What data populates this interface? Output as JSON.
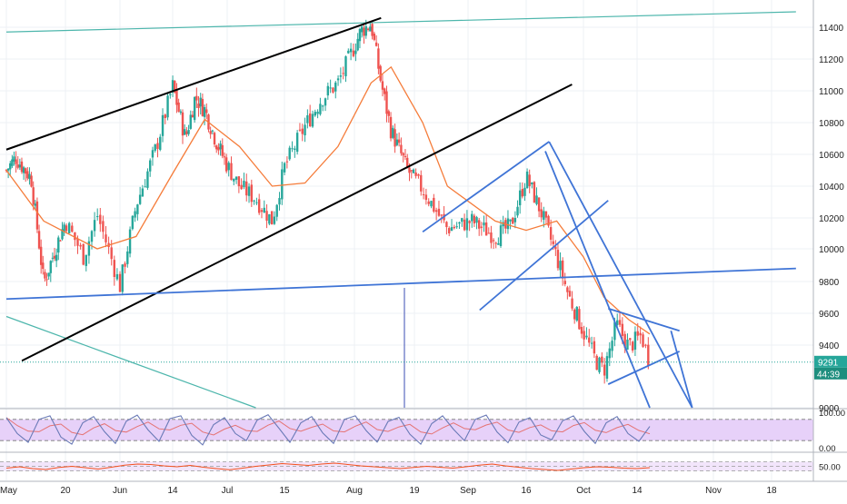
{
  "colors": {
    "bull": "#26a69a",
    "bear": "#ef5350",
    "ma": "#f57c3a",
    "grid": "#eef0f4",
    "axis_text": "#222222",
    "black_line": "#000000",
    "blue_line": "#3f74d6",
    "teal_line": "#4db6ac",
    "purple_line": "#5c6bc0",
    "stoch_band": "#e7d1f9",
    "stoch_k": "#6a7ab7",
    "stoch_d": "#e57373",
    "osc_band": "#f2e5fb",
    "osc_line": "#f4511e",
    "price_tag": "#26a69a",
    "timer_tag": "#1e8e7e"
  },
  "price_axis": {
    "labels": [
      "11400",
      "11200",
      "11000",
      "10800",
      "10600",
      "10400",
      "10200",
      "10000",
      "9800",
      "9600",
      "9400",
      "9000"
    ],
    "current_price": "9291",
    "countdown": "44:39"
  },
  "stoch_axis": {
    "labels": [
      "100.00",
      "0.00"
    ]
  },
  "osc_axis": {
    "labels": [
      "50.00"
    ]
  },
  "time_axis": {
    "labels": [
      "May",
      "20",
      "Jun",
      "14",
      "Jul",
      "15",
      "Aug",
      "19",
      "Sep",
      "16",
      "Oct",
      "14",
      "Nov",
      "18"
    ]
  },
  "chart_data": {
    "type": "candlestick",
    "instrument_unit": "price",
    "x_range": [
      "May 2019",
      "Nov 2019"
    ],
    "ylim": [
      9000,
      11500
    ],
    "y_ticks": [
      9000,
      9400,
      9600,
      9800,
      10000,
      10200,
      10400,
      10600,
      10800,
      11000,
      11200,
      11400
    ],
    "last_price": 9291,
    "grid": true,
    "close_path": [
      {
        "date": "May 1",
        "close": 10500
      },
      {
        "date": "May 4",
        "close": 10580
      },
      {
        "date": "May 9",
        "close": 10450
      },
      {
        "date": "May 13",
        "close": 9790
      },
      {
        "date": "May 20",
        "close": 10180
      },
      {
        "date": "May 24",
        "close": 9950
      },
      {
        "date": "May 27",
        "close": 10220
      },
      {
        "date": "Jun 1",
        "close": 9770
      },
      {
        "date": "Jun 5",
        "close": 10280
      },
      {
        "date": "Jun 10",
        "close": 10650
      },
      {
        "date": "Jun 14",
        "close": 11030
      },
      {
        "date": "Jun 18",
        "close": 10700
      },
      {
        "date": "Jun 21",
        "close": 10960
      },
      {
        "date": "Jun 24",
        "close": 10880
      },
      {
        "date": "Jun 28",
        "close": 10660
      },
      {
        "date": "Jul 4",
        "close": 10400
      },
      {
        "date": "Jul 8",
        "close": 10320
      },
      {
        "date": "Jul 12",
        "close": 10180
      },
      {
        "date": "Jul 15",
        "close": 10520
      },
      {
        "date": "Jul 20",
        "close": 10780
      },
      {
        "date": "Jul 24",
        "close": 10950
      },
      {
        "date": "Jul 28",
        "close": 11050
      },
      {
        "date": "Aug 1",
        "close": 11280
      },
      {
        "date": "Aug 3",
        "close": 11380
      },
      {
        "date": "Aug 6",
        "close": 11420
      },
      {
        "date": "Aug 9",
        "close": 11050
      },
      {
        "date": "Aug 12",
        "close": 10750
      },
      {
        "date": "Aug 17",
        "close": 10500
      },
      {
        "date": "Aug 21",
        "close": 10380
      },
      {
        "date": "Aug 27",
        "close": 10130
      },
      {
        "date": "Sep 2",
        "close": 10180
      },
      {
        "date": "Sep 8",
        "close": 10080
      },
      {
        "date": "Sep 12",
        "close": 10150
      },
      {
        "date": "Sep 16",
        "close": 10460
      },
      {
        "date": "Sep 20",
        "close": 10230
      },
      {
        "date": "Sep 24",
        "close": 9950
      },
      {
        "date": "Sep 27",
        "close": 9720
      },
      {
        "date": "Oct 1",
        "close": 9480
      },
      {
        "date": "Oct 4",
        "close": 9300
      },
      {
        "date": "Oct 6",
        "close": 9240
      },
      {
        "date": "Oct 9",
        "close": 9530
      },
      {
        "date": "Oct 12",
        "close": 9390
      },
      {
        "date": "Oct 15",
        "close": 9460
      },
      {
        "date": "Oct 17",
        "close": 9291
      }
    ],
    "moving_average": [
      {
        "date": "May 1",
        "value": 10500
      },
      {
        "date": "May 13",
        "value": 10180
      },
      {
        "date": "May 27",
        "value": 10000
      },
      {
        "date": "Jun 5",
        "value": 10080
      },
      {
        "date": "Jun 14",
        "value": 10480
      },
      {
        "date": "Jun 24",
        "value": 10820
      },
      {
        "date": "Jul 4",
        "value": 10650
      },
      {
        "date": "Jul 12",
        "value": 10400
      },
      {
        "date": "Jul 20",
        "value": 10420
      },
      {
        "date": "Jul 28",
        "value": 10650
      },
      {
        "date": "Aug 6",
        "value": 11050
      },
      {
        "date": "Aug 12",
        "value": 11150
      },
      {
        "date": "Aug 21",
        "value": 10800
      },
      {
        "date": "Aug 27",
        "value": 10400
      },
      {
        "date": "Sep 8",
        "value": 10180
      },
      {
        "date": "Sep 16",
        "value": 10120
      },
      {
        "date": "Sep 24",
        "value": 10180
      },
      {
        "date": "Oct 1",
        "value": 9950
      },
      {
        "date": "Oct 6",
        "value": 9700
      },
      {
        "date": "Oct 12",
        "value": 9560
      },
      {
        "date": "Oct 17",
        "value": 9470
      }
    ],
    "trendlines": [
      {
        "name": "teal-upper",
        "color": "teal",
        "from": {
          "date": "May 1",
          "price": 11370
        },
        "to": {
          "date": "Nov 25",
          "price": 11500
        }
      },
      {
        "name": "teal-lower",
        "color": "teal",
        "from": {
          "date": "May 1",
          "price": 9580
        },
        "to": {
          "date": "Jul 8",
          "price": 9000
        }
      },
      {
        "name": "black-upper",
        "color": "black",
        "from": {
          "date": "May 1",
          "price": 10630
        },
        "to": {
          "date": "Aug 9",
          "price": 11460
        }
      },
      {
        "name": "black-lower",
        "color": "black",
        "from": {
          "date": "May 6",
          "price": 9300
        },
        "to": {
          "date": "Sep 28",
          "price": 11040
        }
      },
      {
        "name": "blue-support",
        "color": "blue",
        "from": {
          "date": "May 1",
          "price": 9690
        },
        "to": {
          "date": "Nov 25",
          "price": 9880
        }
      },
      {
        "name": "blue-channel-top",
        "color": "blue",
        "from": {
          "date": "Aug 21",
          "price": 10110
        },
        "to": {
          "date": "Sep 22",
          "price": 10680
        }
      },
      {
        "name": "blue-channel-bottom",
        "color": "blue",
        "from": {
          "date": "Sep 4",
          "price": 9620
        },
        "to": {
          "date": "Oct 7",
          "price": 10310
        }
      },
      {
        "name": "blue-steep-left",
        "color": "blue",
        "from": {
          "date": "Sep 21",
          "price": 10620
        },
        "to": {
          "date": "Oct 17",
          "price": 9000
        }
      },
      {
        "name": "blue-steep-right",
        "color": "blue",
        "from": {
          "date": "Sep 22",
          "price": 10680
        },
        "to": {
          "date": "Oct 27",
          "price": 9000
        }
      },
      {
        "name": "blue-wedge-top",
        "color": "blue",
        "from": {
          "date": "Oct 7",
          "price": 9630
        },
        "to": {
          "date": "Oct 24",
          "price": 9490
        }
      },
      {
        "name": "blue-wedge-bottom",
        "color": "blue",
        "from": {
          "date": "Oct 7",
          "price": 9150
        },
        "to": {
          "date": "Oct 24",
          "price": 9360
        }
      },
      {
        "name": "blue-wedge-projection",
        "color": "blue",
        "from": {
          "date": "Oct 22",
          "price": 9490
        },
        "to": {
          "date": "Oct 27",
          "price": 9000
        }
      },
      {
        "name": "purple-vertical",
        "color": "purple",
        "from": {
          "date": "Aug 16",
          "price": 9760
        },
        "to": {
          "date": "Aug 16",
          "price": 9000
        }
      }
    ],
    "stochastic": {
      "ylim": [
        0,
        100
      ],
      "upper_band": 80,
      "lower_band": 20,
      "k_values": [
        85,
        40,
        15,
        80,
        90,
        30,
        10,
        70,
        88,
        45,
        12,
        75,
        92,
        50,
        18,
        82,
        90,
        35,
        8,
        65,
        85,
        40,
        20,
        78,
        93,
        55,
        15,
        70,
        88,
        42,
        12,
        80,
        90,
        48,
        16,
        74,
        86,
        38,
        10,
        68,
        90,
        52,
        20,
        80,
        92,
        44,
        14,
        72,
        85,
        36,
        22,
        76,
        90,
        46,
        12,
        70,
        88,
        40,
        18,
        60
      ]
    },
    "oscillator": {
      "ylim": [
        0,
        100
      ],
      "upper_band": 70,
      "lower_band": 30,
      "values": [
        42,
        48,
        40,
        36,
        45,
        50,
        44,
        38,
        46,
        55,
        60,
        58,
        52,
        48,
        54,
        46,
        40,
        35,
        42,
        50,
        56,
        62,
        58,
        54,
        60,
        64,
        58,
        52,
        48,
        44,
        40,
        45,
        50,
        46,
        42,
        48,
        55,
        60,
        52,
        46,
        40,
        36,
        32,
        38,
        44,
        48,
        46,
        42,
        40,
        44
      ]
    }
  }
}
